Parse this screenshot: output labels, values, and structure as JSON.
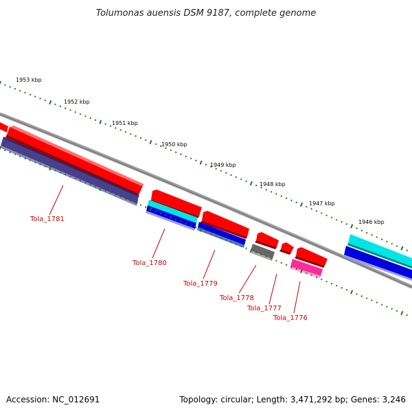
{
  "title": "Tolumonas auensis DSM 9187, complete genome",
  "footer": {
    "accession": "Accession: NC_012691",
    "summary": "Topology: circular; Length: 3,471,292 bp; Genes: 3,246"
  },
  "scale_labels": [
    "1953 kbp",
    "1952 kbp",
    "1951 kbp",
    "1950 kbp",
    "1949 kbp",
    "1948 kbp",
    "1947 kbp",
    "1946 kbp"
  ],
  "gene_labels": [
    "Tola_1781",
    "Tola_1780",
    "Tola_1779",
    "Tola_1778",
    "Tola_1777",
    "Tola_1776"
  ],
  "colors": {
    "backbone": "#808080",
    "tick": "#1a7a1a",
    "red": "#ff0000",
    "navy": "#4a3f8a",
    "cyan": "#00e5e5",
    "blue": "#0000e0",
    "gray": "#666666",
    "magenta": "#ff2a9a",
    "label": "#cc0000"
  }
}
